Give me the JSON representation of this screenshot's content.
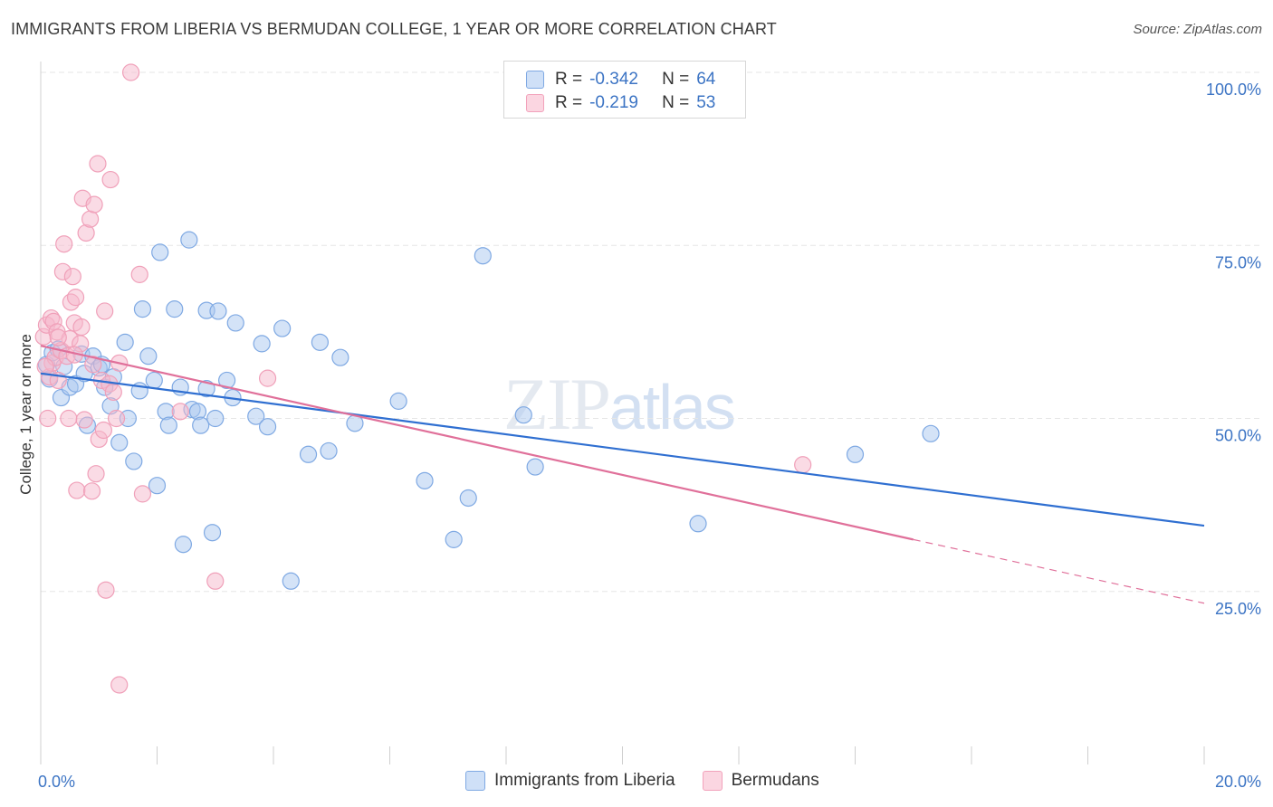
{
  "title": "IMMIGRANTS FROM LIBERIA VS BERMUDAN COLLEGE, 1 YEAR OR MORE CORRELATION CHART",
  "source": "Source: ZipAtlas.com",
  "watermark": {
    "zip": "ZIP",
    "atlas": "atlas"
  },
  "legend": {
    "rows": [
      {
        "r_label": "R =",
        "r_value": "-0.342",
        "n_label": "N =",
        "n_value": "64",
        "color": "#a9c8ef"
      },
      {
        "r_label": "R =",
        "r_value": "-0.219",
        "n_label": "N =",
        "n_value": "53",
        "color": "#f6b8cb"
      }
    ]
  },
  "bottom_legend": [
    {
      "label": "Immigrants from Liberia",
      "color": "#a9c8ef"
    },
    {
      "label": "Bermudans",
      "color": "#f6b8cb"
    }
  ],
  "chart_data": {
    "type": "scatter",
    "title": "IMMIGRANTS FROM LIBERIA VS BERMUDAN COLLEGE, 1 YEAR OR MORE CORRELATION CHART",
    "xlabel": "",
    "ylabel": "College, 1 year or more",
    "xlim": [
      0,
      20
    ],
    "ylim": [
      0,
      100
    ],
    "x_tick_labels": [
      "0.0%",
      "20.0%"
    ],
    "y_ticks": [
      25,
      50,
      75,
      100
    ],
    "y_tick_labels": [
      "25.0%",
      "50.0%",
      "75.0%",
      "100.0%"
    ],
    "grid": true,
    "series": [
      {
        "name": "Immigrants from Liberia",
        "color": "#a9c8ef",
        "line_color": "#2f6fd1",
        "trend": {
          "x": [
            0,
            20
          ],
          "y": [
            56.5,
            34.5
          ]
        },
        "points": [
          [
            0.1,
            57.8
          ],
          [
            0.2,
            59.5
          ],
          [
            0.3,
            60.0
          ],
          [
            0.35,
            53.0
          ],
          [
            0.4,
            57.5
          ],
          [
            0.5,
            54.5
          ],
          [
            0.6,
            55.0
          ],
          [
            0.7,
            59.3
          ],
          [
            0.75,
            56.5
          ],
          [
            0.8,
            49.0
          ],
          [
            0.9,
            59.0
          ],
          [
            1.0,
            57.3
          ],
          [
            1.05,
            57.8
          ],
          [
            1.1,
            54.5
          ],
          [
            1.2,
            51.8
          ],
          [
            1.25,
            56.0
          ],
          [
            1.35,
            46.5
          ],
          [
            1.45,
            61.0
          ],
          [
            1.5,
            50.0
          ],
          [
            1.6,
            43.8
          ],
          [
            1.7,
            54.0
          ],
          [
            1.75,
            65.8
          ],
          [
            1.85,
            59.0
          ],
          [
            1.95,
            55.5
          ],
          [
            2.0,
            40.3
          ],
          [
            2.05,
            74.0
          ],
          [
            2.15,
            51.0
          ],
          [
            2.2,
            49.0
          ],
          [
            2.3,
            65.8
          ],
          [
            2.4,
            54.5
          ],
          [
            2.45,
            31.8
          ],
          [
            2.55,
            75.8
          ],
          [
            2.6,
            51.3
          ],
          [
            2.7,
            51.0
          ],
          [
            2.75,
            49.0
          ],
          [
            2.85,
            54.3
          ],
          [
            2.85,
            65.6
          ],
          [
            2.95,
            33.5
          ],
          [
            3.0,
            50.0
          ],
          [
            3.05,
            65.5
          ],
          [
            3.2,
            55.5
          ],
          [
            3.3,
            53.0
          ],
          [
            3.35,
            63.8
          ],
          [
            3.7,
            50.3
          ],
          [
            3.8,
            60.8
          ],
          [
            3.9,
            48.8
          ],
          [
            4.15,
            63.0
          ],
          [
            4.3,
            26.5
          ],
          [
            4.6,
            44.8
          ],
          [
            4.8,
            61.0
          ],
          [
            4.95,
            45.3
          ],
          [
            5.15,
            58.8
          ],
          [
            5.4,
            49.3
          ],
          [
            6.15,
            52.5
          ],
          [
            6.6,
            41.0
          ],
          [
            7.1,
            32.5
          ],
          [
            7.35,
            38.5
          ],
          [
            7.6,
            73.5
          ],
          [
            8.3,
            50.5
          ],
          [
            8.5,
            43.0
          ],
          [
            11.3,
            34.8
          ],
          [
            14.0,
            44.8
          ],
          [
            15.3,
            47.8
          ],
          [
            0.15,
            55.7
          ]
        ]
      },
      {
        "name": "Bermudans",
        "color": "#f6b8cb",
        "line_color": "#e0709a",
        "trend": {
          "x": [
            0,
            15
          ],
          "y": [
            60.5,
            32.5
          ]
        },
        "trend_dashed": {
          "x": [
            15,
            20
          ],
          "y": [
            32.5,
            23.3
          ]
        },
        "points": [
          [
            0.05,
            61.8
          ],
          [
            0.1,
            63.5
          ],
          [
            0.12,
            50.0
          ],
          [
            0.15,
            56.0
          ],
          [
            0.18,
            64.5
          ],
          [
            0.2,
            58.0
          ],
          [
            0.22,
            64.0
          ],
          [
            0.25,
            58.8
          ],
          [
            0.28,
            62.5
          ],
          [
            0.3,
            55.5
          ],
          [
            0.35,
            59.8
          ],
          [
            0.38,
            71.2
          ],
          [
            0.4,
            75.2
          ],
          [
            0.45,
            59.0
          ],
          [
            0.48,
            50.0
          ],
          [
            0.5,
            61.5
          ],
          [
            0.52,
            66.8
          ],
          [
            0.55,
            70.5
          ],
          [
            0.58,
            63.8
          ],
          [
            0.6,
            67.5
          ],
          [
            0.62,
            39.6
          ],
          [
            0.68,
            60.8
          ],
          [
            0.7,
            63.2
          ],
          [
            0.72,
            81.8
          ],
          [
            0.75,
            49.8
          ],
          [
            0.78,
            76.8
          ],
          [
            0.85,
            78.8
          ],
          [
            0.88,
            39.5
          ],
          [
            0.92,
            80.9
          ],
          [
            0.95,
            42.0
          ],
          [
            0.98,
            86.8
          ],
          [
            1.0,
            47.0
          ],
          [
            1.05,
            55.5
          ],
          [
            1.08,
            48.3
          ],
          [
            1.1,
            65.5
          ],
          [
            1.12,
            25.2
          ],
          [
            1.18,
            55.0
          ],
          [
            1.2,
            84.5
          ],
          [
            1.25,
            53.8
          ],
          [
            1.3,
            50.0
          ],
          [
            1.35,
            58.0
          ],
          [
            1.35,
            11.5
          ],
          [
            1.55,
            100.0
          ],
          [
            1.7,
            70.8
          ],
          [
            1.75,
            39.1
          ],
          [
            2.4,
            51.0
          ],
          [
            3.0,
            26.5
          ],
          [
            3.9,
            55.8
          ],
          [
            13.1,
            43.3
          ],
          [
            0.08,
            57.5
          ],
          [
            0.3,
            61.7
          ],
          [
            0.58,
            59.2
          ],
          [
            0.9,
            57.8
          ]
        ]
      }
    ]
  }
}
